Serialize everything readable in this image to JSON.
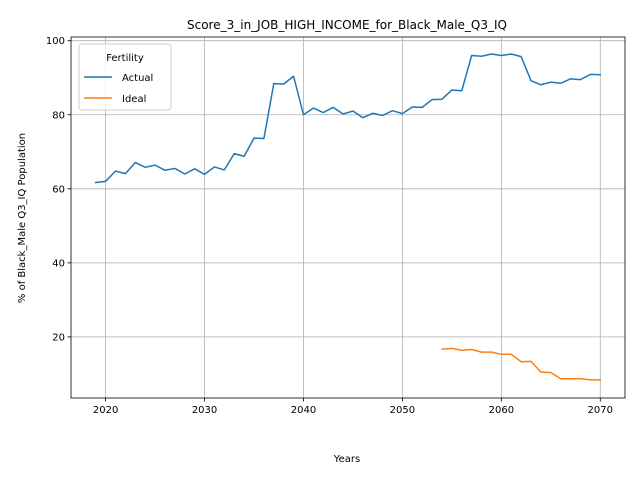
{
  "chart_data": {
    "type": "line",
    "title": "Score_3_in_JOB_HIGH_INCOME_for_Black_Male_Q3_IQ",
    "xlabel": "Years",
    "ylabel": "% of Black_Male Q3_IQ Population",
    "xlim": [
      2016.5,
      2072.5
    ],
    "ylim": [
      3.5,
      101
    ],
    "xticks": [
      2020,
      2030,
      2040,
      2050,
      2060,
      2070
    ],
    "yticks": [
      20,
      40,
      60,
      80,
      100
    ],
    "grid": true,
    "legend": {
      "title": "Fertility",
      "placement": "top-left"
    },
    "series": [
      {
        "name": "Actual",
        "color": "#1f77b4",
        "x": [
          2019,
          2020,
          2021,
          2022,
          2023,
          2024,
          2025,
          2026,
          2027,
          2028,
          2029,
          2030,
          2031,
          2032,
          2033,
          2034,
          2035,
          2036,
          2037,
          2038,
          2039,
          2040,
          2041,
          2042,
          2043,
          2044,
          2045,
          2046,
          2047,
          2048,
          2049,
          2050,
          2051,
          2052,
          2053,
          2054,
          2055,
          2056,
          2057,
          2058,
          2059,
          2060,
          2061,
          2062,
          2063,
          2064,
          2065,
          2066,
          2067,
          2068,
          2069,
          2070
        ],
        "values": [
          61.7,
          62.0,
          64.8,
          64.1,
          67.1,
          65.8,
          66.4,
          65.0,
          65.5,
          64.0,
          65.4,
          63.9,
          65.9,
          65.1,
          69.5,
          68.8,
          73.7,
          73.6,
          88.4,
          88.3,
          90.4,
          80.0,
          81.8,
          80.6,
          82.0,
          80.2,
          81.0,
          79.2,
          80.4,
          79.8,
          81.1,
          80.3,
          82.1,
          82.0,
          84.1,
          84.2,
          86.7,
          86.5,
          96.0,
          95.8,
          96.4,
          96.0,
          96.4,
          95.7,
          89.2,
          88.1,
          88.8,
          88.5,
          89.7,
          89.5,
          90.9,
          90.8
        ]
      },
      {
        "name": "Ideal",
        "color": "#ff7f0e",
        "x": [
          2054,
          2055,
          2056,
          2057,
          2058,
          2059,
          2060,
          2061,
          2062,
          2063,
          2064,
          2065,
          2066,
          2067,
          2068,
          2069,
          2070
        ],
        "values": [
          16.7,
          16.9,
          16.4,
          16.6,
          15.9,
          15.9,
          15.3,
          15.3,
          13.3,
          13.4,
          10.5,
          10.4,
          8.7,
          8.7,
          8.7,
          8.4,
          8.4
        ]
      }
    ]
  }
}
